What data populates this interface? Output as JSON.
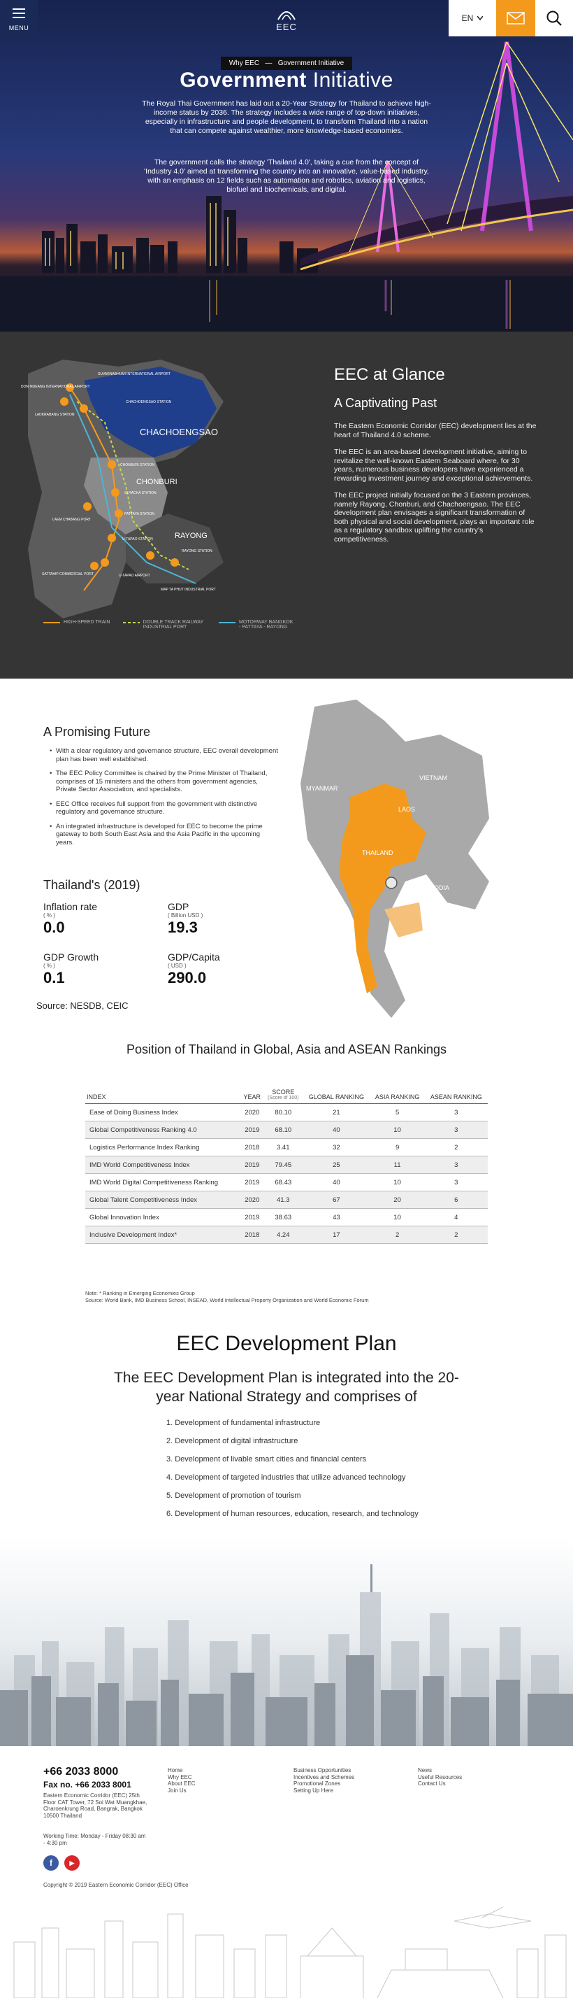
{
  "header": {
    "menu_label": "MENU",
    "logo_text": "EEC",
    "lang": "EN"
  },
  "hero": {
    "breadcrumb_a": "Why EEC",
    "breadcrumb_b": "Government Initiative",
    "title_bold": "Government",
    "title_thin": "Initiative",
    "p1": "The Royal Thai Government has laid out a 20-Year Strategy for Thailand to achieve high-income status by 2036. The strategy includes a wide range of top-down initiatives, especially in infrastructure and people development, to transform Thailand into a nation that can compete against wealthier, more knowledge-based economies.",
    "p2": "The government calls the strategy 'Thailand 4.0', taking a cue from the concept of 'Industry 4.0' aimed at transforming the country into an innovative, value-based industry, with an emphasis on 12 fields such as automation and robotics, aviation and logistics, biofuel and biochemicals, and digital."
  },
  "glance": {
    "title": "EEC at Glance",
    "subtitle": "A Captivating Past",
    "p1": "The Eastern Economic Corridor (EEC) development lies at the heart of Thailand 4.0 scheme.",
    "p2": "The EEC is an area-based development initiative, aiming to revitalize the well-known Eastern Seaboard where, for 30 years, numerous business developers have experienced a rewarding investment journey and exceptional achievements.",
    "p3": "The EEC project initially focused on the 3 Eastern provinces, namely Rayong, Chonburi, and Chachoengsao. The EEC development plan envisages a significant transformation of both physical and social development, plays an important role as a regulatory sandbox uplifting the country's competitiveness.",
    "map_labels": {
      "don_mueang": "DON MUEANG INTERNATIONAL AIRPORT",
      "suvarnabhumi": "SUVARNABHUMI INTERNATIONAL AIRPORT",
      "chachoengsao_station": "CHACHOENGSAO STATION",
      "ladkrabang": "LADKRABANG STATION",
      "chachoengsao": "CHACHOENGSAO",
      "chonburi_station": "CHONBURI STATION",
      "chonburi": "CHONBURI",
      "si_racha": "SI RACHA STATION",
      "laem_chabang": "LAEM CHABANG PORT",
      "pattaya": "PATTAYA STATION",
      "u_tapao_station": "U-TAPAO STATION",
      "rayong": "RAYONG",
      "rayong_station": "RAYONG STATION",
      "sattahip": "SATTAHIP COMMERCIAL PORT",
      "u_tapao_airport": "U-TAPAO AIRPORT",
      "map_ta_phut": "MAP TA PHUT INDUSTRIAL PORT"
    },
    "legend": [
      {
        "label": "HIGH-SPEED TRAIN",
        "color": "#f39a1d"
      },
      {
        "label": "DOUBLE TRACK RAILWAY INDUSTRIAL PORT",
        "color": "#c8d64a"
      },
      {
        "label": "MOTORWAY BANGKOK - PATTAYA - RAYONG",
        "color": "#4cb5d4"
      }
    ]
  },
  "future": {
    "title": "A Promising Future",
    "bullets": [
      "With a clear regulatory and governance structure, EEC overall development plan has been well established.",
      "The EEC Policy Committee is chaired by the Prime Minister of Thailand, comprises of 15 ministers and the others from government agencies, Private Sector Association, and specialists.",
      "EEC Office receives full support from the government with distinctive regulatory and governance structure.",
      "An integrated infrastructure is developed for EEC to become the prime gateway to both South East Asia and the Asia Pacific in the upcoming years."
    ],
    "stats_title": "Thailand's (2019)",
    "stats": [
      {
        "name": "Inflation rate",
        "unit": "( % )",
        "value": "0.0"
      },
      {
        "name": "GDP",
        "unit": "( Billion USD )",
        "value": "19.3"
      },
      {
        "name": "GDP Growth",
        "unit": "( % )",
        "value": "0.1"
      },
      {
        "name": "GDP/Capita",
        "unit": "( USD )",
        "value": "290.0"
      }
    ],
    "source": "Source: NESDB, CEIC",
    "map_labels": {
      "myanmar": "MYANMAR",
      "vietnam": "VIETNAM",
      "laos": "LAOS",
      "thailand": "THAILAND",
      "cambodia": "CAMBODIA"
    }
  },
  "rankings": {
    "title": "Position of Thailand in Global, Asia and ASEAN Rankings",
    "headers": {
      "index": "INDEX",
      "year": "YEAR",
      "score": "SCORE",
      "score_note": "(Score of 100)",
      "global": "GLOBAL RANKING",
      "asia": "ASIA RANKING",
      "asean": "ASEAN RANKING"
    },
    "rows": [
      [
        "Ease of Doing Business Index",
        "2020",
        "80.10",
        "21",
        "5",
        "3"
      ],
      [
        "Global Competitiveness Ranking 4.0",
        "2019",
        "68.10",
        "40",
        "10",
        "3"
      ],
      [
        "Logistics Performance Index Ranking",
        "2018",
        "3.41",
        "32",
        "9",
        "2"
      ],
      [
        "IMD World Competitiveness Index",
        "2019",
        "79.45",
        "25",
        "11",
        "3"
      ],
      [
        "IMD World Digital Competitiveness Ranking",
        "2019",
        "68.43",
        "40",
        "10",
        "3"
      ],
      [
        "Global Talent Competitiveness Index",
        "2020",
        "41.3",
        "67",
        "20",
        "6"
      ],
      [
        "Global Innovation Index",
        "2019",
        "38.63",
        "43",
        "10",
        "4"
      ],
      [
        "Inclusive Development Index*",
        "2018",
        "4.24",
        "17",
        "2",
        "2"
      ]
    ],
    "note1": "Note: * Ranking in Emerging Economies Group",
    "note2": "Source: World Bank, IMD Business School, INSEAD, World Intellectual Property Organization and World Economic Forum"
  },
  "plan": {
    "title": "EEC Development Plan",
    "subtitle": "The EEC Development Plan is integrated into the 20-year National Strategy and comprises of",
    "items": [
      "Development of fundamental infrastructure",
      "Development of digital infrastructure",
      "Development of livable smart cities and financial centers",
      "Development of targeted industries that utilize advanced technology",
      "Development of promotion of tourism",
      "Development of human resources, education, research, and technology"
    ]
  },
  "footer": {
    "phone": "+66 2033 8000",
    "fax": "Fax no. +66 2033 8001",
    "address": "Eastern Economic Corridor (EEC) 25th Floor CAT Tower, 72 Soi Wat Muangkhae, Charoenkrung Road, Bangrak, Bangkok 10500 Thailand",
    "hours": "Working Time: Monday - Friday 08:30 am - 4:30 pm",
    "col1": [
      "Home",
      "Why EEC",
      "About EEC",
      "Join Us"
    ],
    "col2": [
      "Business Opportunities",
      "Incentives and Schemes",
      "Promotional Zones",
      "Setting Up Here"
    ],
    "col3": [
      "News",
      "Useful Resources",
      "Contact Us"
    ],
    "copyright": "Copyright © 2019 Eastern Economic Corridor (EEC) Office",
    "facebook": "f",
    "youtube": "▶"
  },
  "colors": {
    "navy": "#1a2a57",
    "orange": "#f39a1d",
    "dark": "#353535",
    "map_blue": "#1f3e8c"
  }
}
